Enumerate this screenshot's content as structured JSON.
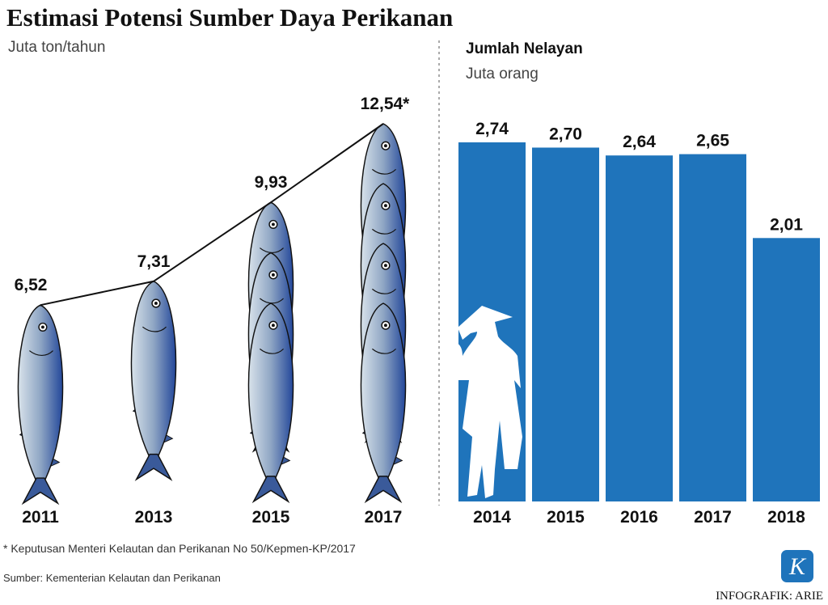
{
  "title": "Estimasi Potensi Sumber Daya Perikanan",
  "chart_data": [
    {
      "type": "pictograph",
      "unit": "Juta ton/tahun",
      "categories": [
        "2011",
        "2013",
        "2015",
        "2017"
      ],
      "values": [
        6.52,
        7.31,
        9.93,
        12.54
      ],
      "value_labels": [
        "6,52",
        "7,31",
        "9,93",
        "12,54*"
      ]
    },
    {
      "type": "bar",
      "title": "Jumlah Nelayan",
      "subtitle": "Juta orang",
      "color": "#1f74bb",
      "categories": [
        "2014",
        "2015",
        "2016",
        "2017",
        "2018"
      ],
      "values": [
        2.74,
        2.7,
        2.64,
        2.65,
        2.01
      ],
      "value_labels": [
        "2,74",
        "2,70",
        "2,64",
        "2,65",
        "2,01"
      ]
    }
  ],
  "footnote": "* Keputusan Menteri Kelautan dan Perikanan No 50/Kepmen-KP/2017",
  "source": "Sumber: Kementerian Kelautan dan Perikanan",
  "credit": "INFOGRAFIK: ARIE",
  "logo": "K"
}
